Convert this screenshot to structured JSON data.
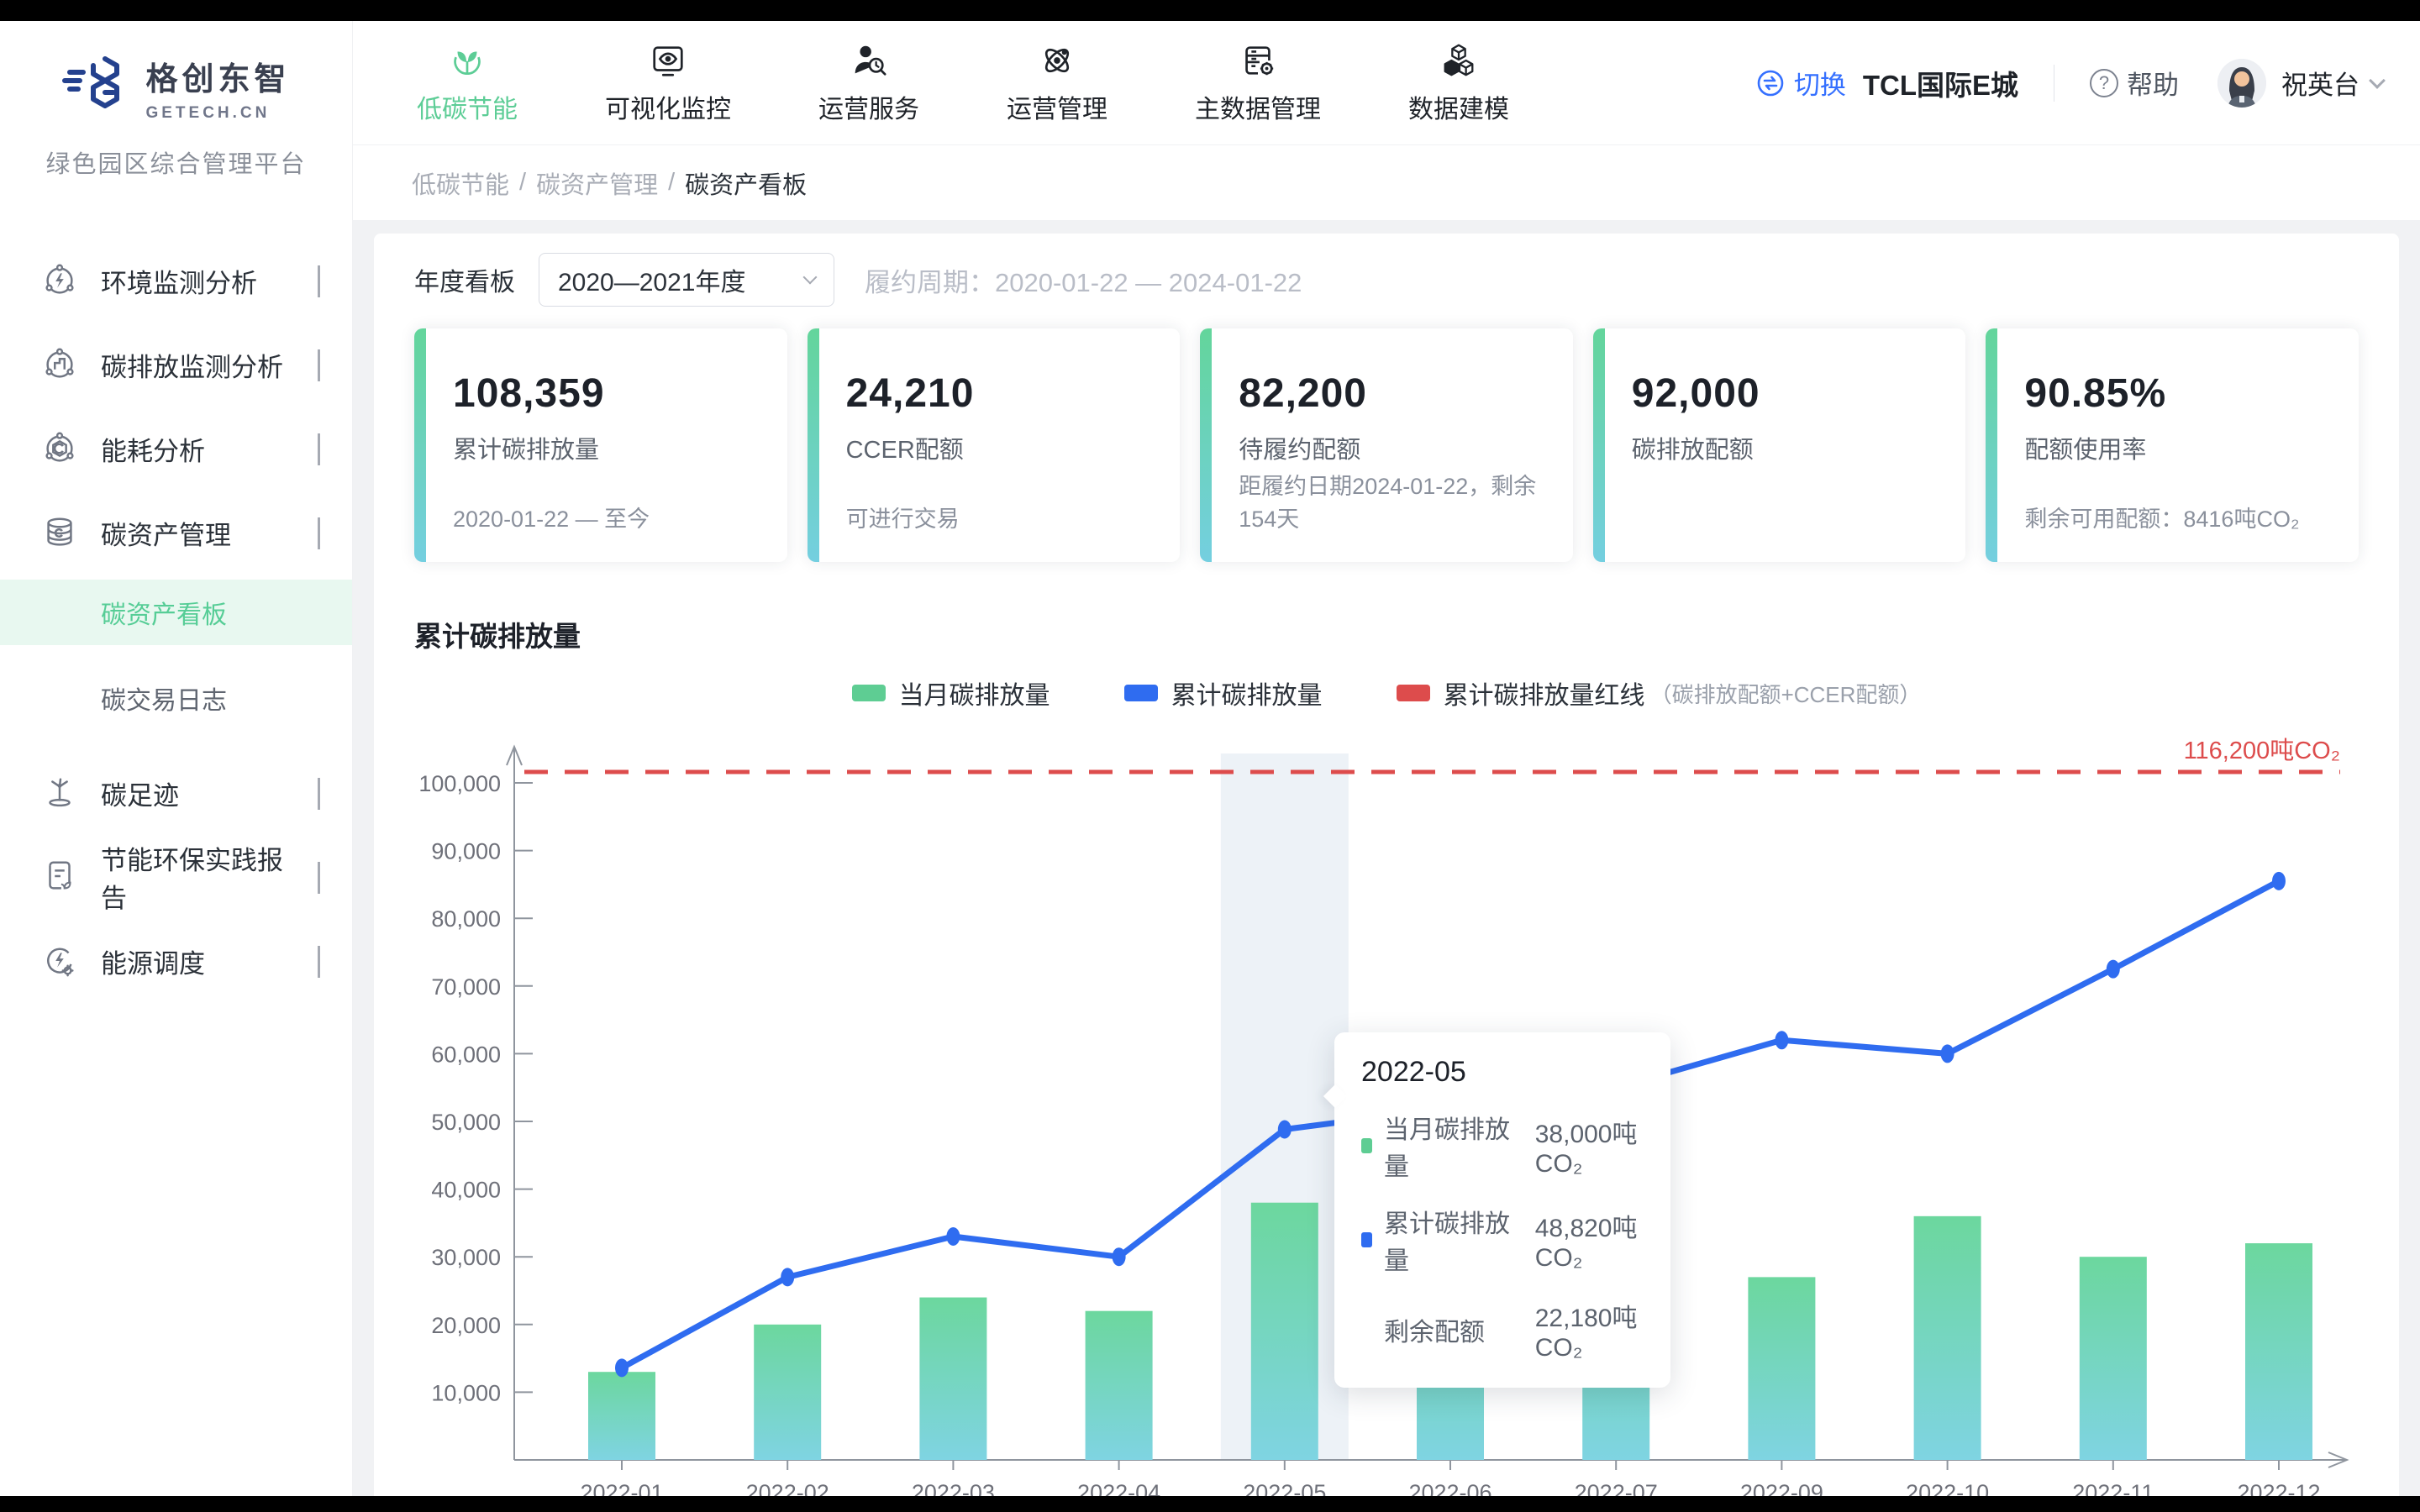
{
  "sidebar": {
    "brand": {
      "name": "格创东智",
      "domain": "GETECH.CN",
      "subtitle": "绿色园区综合管理平台"
    },
    "items": [
      {
        "label": "环境监测分析"
      },
      {
        "label": "碳排放监测分析"
      },
      {
        "label": "能耗分析"
      },
      {
        "label": "碳资产管理"
      },
      {
        "label": "碳足迹"
      },
      {
        "label": "节能环保实践报告"
      },
      {
        "label": "能源调度"
      }
    ],
    "carbon_asset_children": [
      {
        "label": "碳资产看板",
        "active": true
      },
      {
        "label": "碳交易日志",
        "active": false
      }
    ]
  },
  "header": {
    "nav": [
      {
        "label": "低碳节能",
        "active": true
      },
      {
        "label": "可视化监控",
        "active": false
      },
      {
        "label": "运营服务",
        "active": false
      },
      {
        "label": "运营管理",
        "active": false
      },
      {
        "label": "主数据管理",
        "active": false
      },
      {
        "label": "数据建模",
        "active": false
      }
    ],
    "switch_label": "切换",
    "site_name": "TCL国际E城",
    "help_label": "帮助",
    "user_name": "祝英台"
  },
  "breadcrumb": {
    "parts": [
      "低碳节能",
      "碳资产管理",
      "碳资产看板"
    ],
    "separator": "/"
  },
  "filters": {
    "label": "年度看板",
    "year_value": "2020—2021年度",
    "period_note": "履约周期：2020-01-22 — 2024-01-22"
  },
  "cards": [
    {
      "value": "108,359",
      "label": "累计碳排放量",
      "note": "2020-01-22 — 至今"
    },
    {
      "value": "24,210",
      "label": "CCER配额",
      "note": "可进行交易"
    },
    {
      "value": "82,200",
      "label": "待履约配额",
      "note": "距履约日期2024-01-22，剩余154天"
    },
    {
      "value": "92,000",
      "label": "碳排放配额",
      "note": ""
    },
    {
      "value": "90.85%",
      "label": "配额使用率",
      "note": "剩余可用配额：8416吨CO₂"
    }
  ],
  "chart_section": {
    "title": "累计碳排放量"
  },
  "chart_data": {
    "type": "bar+line",
    "title": "累计碳排放量",
    "categories": [
      "2022-01",
      "2022-02",
      "2022-03",
      "2022-04",
      "2022-05",
      "2022-06",
      "2022-07",
      "2022-09",
      "2022-10",
      "2022-11",
      "2022-12"
    ],
    "series": [
      {
        "name": "当月碳排放量",
        "type": "bar",
        "color_top": "#6cd79e",
        "color_bottom": "#7fd4e2",
        "values": [
          13000,
          20000,
          24000,
          22000,
          38000,
          30000,
          33000,
          27000,
          36000,
          30000,
          32000
        ]
      },
      {
        "name": "累计碳排放量",
        "type": "line",
        "color": "#2f6cf0",
        "values": [
          13600,
          27000,
          33000,
          30000,
          48820,
          52000,
          55000,
          62000,
          60000,
          72500,
          85500
        ]
      }
    ],
    "redline": {
      "name": "累计碳排放量红线",
      "note": "（碳排放配额+CCER配额）",
      "value": 116200,
      "label": "116,200吨CO₂",
      "color": "#dd4c4c"
    },
    "ylim": [
      0,
      100000
    ],
    "ytick_step": 10000,
    "grid": false,
    "legend_position": "top-center",
    "highlight_category": "2022-05",
    "tooltip": {
      "title": "2022-05",
      "rows": [
        {
          "label": "当月碳排放量",
          "value": "38,000吨CO₂",
          "swatch": "#5ecd93"
        },
        {
          "label": "累计碳排放量",
          "value": "48,820吨CO₂",
          "swatch": "#2f6cf0"
        },
        {
          "label": "剩余配额",
          "value": "22,180吨CO₂",
          "swatch": null
        }
      ]
    },
    "colors": {
      "bar_legend": "#5ecd93",
      "line": "#2f6cf0",
      "redline": "#dd4c4c"
    }
  }
}
